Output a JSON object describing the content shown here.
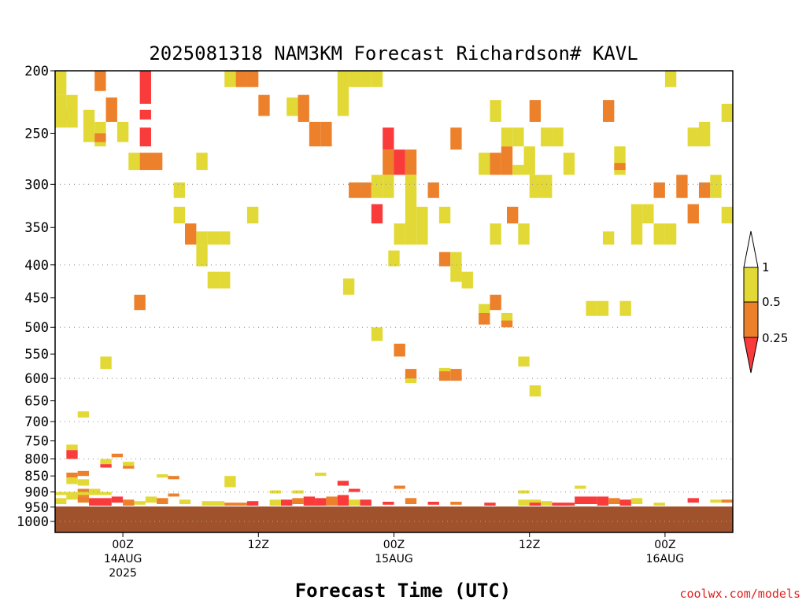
{
  "chart_data": {
    "type": "heatmap",
    "title": "2025081318 NAM3KM Forecast Richardson# KAVL",
    "xlabel": "Forecast Time (UTC)",
    "credit": "coolwx.com/models",
    "y_scale": "log-pressure",
    "y_ticks": [
      200,
      250,
      300,
      350,
      400,
      450,
      500,
      550,
      600,
      650,
      700,
      750,
      800,
      850,
      900,
      950,
      1000
    ],
    "y_gridlines": [
      300,
      400,
      500,
      600,
      700,
      800,
      900,
      1000
    ],
    "ylim": [
      200,
      1040
    ],
    "x_units": "hours since 2025081318",
    "xlim": [
      0,
      60
    ],
    "x_ticks": [
      {
        "x": 6,
        "lines": [
          "00Z",
          "14AUG",
          "2025"
        ]
      },
      {
        "x": 18,
        "lines": [
          "12Z"
        ]
      },
      {
        "x": 30,
        "lines": [
          "00Z",
          "15AUG"
        ]
      },
      {
        "x": 42,
        "lines": [
          "12Z"
        ]
      },
      {
        "x": 54,
        "lines": [
          "00Z",
          "16AUG"
        ]
      }
    ],
    "colorbar": {
      "labels": [
        "1",
        "0.5",
        "0.25"
      ],
      "colors": {
        "gt1": "#ffffff",
        "y": "#e2d936",
        "o": "#ed802a",
        "r": "#fa3b3b"
      }
    },
    "terrain": {
      "color": "#a0522d",
      "from_pressure": 948
    },
    "cells": [
      {
        "x": 0,
        "p": 200,
        "p2": 218,
        "c": "y"
      },
      {
        "x": 0,
        "p": 230,
        "p2": 240,
        "c": "o"
      },
      {
        "x": 0,
        "p": 218,
        "p2": 245,
        "c": "y"
      },
      {
        "x": 1,
        "p": 218,
        "p2": 245,
        "c": "y"
      },
      {
        "x": 2.5,
        "p": 230,
        "p2": 258,
        "c": "y"
      },
      {
        "x": 3.5,
        "p": 200,
        "p2": 215,
        "c": "o"
      },
      {
        "x": 3.5,
        "p": 240,
        "p2": 262,
        "c": "y"
      },
      {
        "x": 3.5,
        "p": 250,
        "p2": 258,
        "c": "o"
      },
      {
        "x": 4.5,
        "p": 220,
        "p2": 240,
        "c": "o"
      },
      {
        "x": 5.5,
        "p": 240,
        "p2": 258,
        "c": "y"
      },
      {
        "x": 7.5,
        "p": 200,
        "p2": 225,
        "c": "r"
      },
      {
        "x": 7.5,
        "p": 230,
        "p2": 238,
        "c": "r"
      },
      {
        "x": 7.5,
        "p": 245,
        "p2": 262,
        "c": "r"
      },
      {
        "x": 6.5,
        "p": 268,
        "p2": 285,
        "c": "y"
      },
      {
        "x": 7.5,
        "p": 268,
        "p2": 285,
        "c": "o"
      },
      {
        "x": 8.5,
        "p": 268,
        "p2": 285,
        "c": "o"
      },
      {
        "x": 12.5,
        "p": 268,
        "p2": 285,
        "c": "y"
      },
      {
        "x": 15,
        "p": 200,
        "p2": 212,
        "c": "y"
      },
      {
        "x": 16,
        "p": 200,
        "p2": 212,
        "c": "o"
      },
      {
        "x": 17,
        "p": 200,
        "p2": 212,
        "c": "o"
      },
      {
        "x": 18,
        "p": 218,
        "p2": 235,
        "c": "o"
      },
      {
        "x": 20.5,
        "p": 220,
        "p2": 235,
        "c": "y"
      },
      {
        "x": 21.5,
        "p": 218,
        "p2": 240,
        "c": "o"
      },
      {
        "x": 22.5,
        "p": 240,
        "p2": 262,
        "c": "o"
      },
      {
        "x": 23.5,
        "p": 240,
        "p2": 262,
        "c": "o"
      },
      {
        "x": 25,
        "p": 200,
        "p2": 235,
        "c": "y"
      },
      {
        "x": 26,
        "p": 200,
        "p2": 212,
        "c": "y"
      },
      {
        "x": 27,
        "p": 200,
        "p2": 212,
        "c": "y"
      },
      {
        "x": 28,
        "p": 200,
        "p2": 212,
        "c": "y"
      },
      {
        "x": 10.5,
        "p": 298,
        "p2": 315,
        "c": "y"
      },
      {
        "x": 10.5,
        "p": 325,
        "p2": 345,
        "c": "y"
      },
      {
        "x": 11.5,
        "p": 345,
        "p2": 372,
        "c": "o"
      },
      {
        "x": 12.5,
        "p": 355,
        "p2": 372,
        "c": "y"
      },
      {
        "x": 13.5,
        "p": 355,
        "p2": 372,
        "c": "y"
      },
      {
        "x": 14.5,
        "p": 355,
        "p2": 372,
        "c": "y"
      },
      {
        "x": 12.5,
        "p": 372,
        "p2": 402,
        "c": "y"
      },
      {
        "x": 13.5,
        "p": 410,
        "p2": 435,
        "c": "y"
      },
      {
        "x": 14.5,
        "p": 410,
        "p2": 435,
        "c": "y"
      },
      {
        "x": 17,
        "p": 325,
        "p2": 345,
        "c": "y"
      },
      {
        "x": 7,
        "p": 445,
        "p2": 470,
        "c": "o"
      },
      {
        "x": 26,
        "p": 298,
        "p2": 315,
        "c": "o"
      },
      {
        "x": 27,
        "p": 298,
        "p2": 315,
        "c": "o"
      },
      {
        "x": 28,
        "p": 290,
        "p2": 315,
        "c": "y"
      },
      {
        "x": 29,
        "p": 290,
        "p2": 315,
        "c": "y"
      },
      {
        "x": 28,
        "p": 322,
        "p2": 345,
        "c": "r"
      },
      {
        "x": 29,
        "p": 245,
        "p2": 265,
        "c": "r"
      },
      {
        "x": 29,
        "p": 265,
        "p2": 290,
        "c": "o"
      },
      {
        "x": 30,
        "p": 265,
        "p2": 290,
        "c": "r"
      },
      {
        "x": 31,
        "p": 265,
        "p2": 290,
        "c": "o"
      },
      {
        "x": 30,
        "p": 345,
        "p2": 372,
        "c": "y"
      },
      {
        "x": 31,
        "p": 290,
        "p2": 372,
        "c": "y"
      },
      {
        "x": 32,
        "p": 325,
        "p2": 372,
        "c": "y"
      },
      {
        "x": 33,
        "p": 298,
        "p2": 315,
        "c": "o"
      },
      {
        "x": 34,
        "p": 325,
        "p2": 345,
        "c": "y"
      },
      {
        "x": 35,
        "p": 245,
        "p2": 265,
        "c": "o"
      },
      {
        "x": 34,
        "p": 382,
        "p2": 402,
        "c": "o"
      },
      {
        "x": 35,
        "p": 382,
        "p2": 425,
        "c": "y"
      },
      {
        "x": 36,
        "p": 410,
        "p2": 435,
        "c": "y"
      },
      {
        "x": 25.5,
        "p": 420,
        "p2": 445,
        "c": "y"
      },
      {
        "x": 29.5,
        "p": 380,
        "p2": 402,
        "c": "y"
      },
      {
        "x": 37.5,
        "p": 268,
        "p2": 290,
        "c": "y"
      },
      {
        "x": 38.5,
        "p": 268,
        "p2": 290,
        "c": "o"
      },
      {
        "x": 39.5,
        "p": 262,
        "p2": 290,
        "c": "o"
      },
      {
        "x": 38.5,
        "p": 222,
        "p2": 240,
        "c": "y"
      },
      {
        "x": 39.5,
        "p": 245,
        "p2": 262,
        "c": "y"
      },
      {
        "x": 40.5,
        "p": 245,
        "p2": 262,
        "c": "y"
      },
      {
        "x": 40.5,
        "p": 280,
        "p2": 290,
        "c": "y"
      },
      {
        "x": 41.5,
        "p": 262,
        "p2": 290,
        "c": "y"
      },
      {
        "x": 38.5,
        "p": 345,
        "p2": 372,
        "c": "y"
      },
      {
        "x": 40,
        "p": 325,
        "p2": 345,
        "c": "o"
      },
      {
        "x": 41,
        "p": 345,
        "p2": 372,
        "c": "y"
      },
      {
        "x": 42,
        "p": 222,
        "p2": 240,
        "c": "o"
      },
      {
        "x": 42,
        "p": 290,
        "p2": 315,
        "c": "y"
      },
      {
        "x": 43,
        "p": 290,
        "p2": 315,
        "c": "y"
      },
      {
        "x": 43,
        "p": 245,
        "p2": 262,
        "c": "y"
      },
      {
        "x": 44,
        "p": 245,
        "p2": 262,
        "c": "y"
      },
      {
        "x": 45,
        "p": 268,
        "p2": 290,
        "c": "y"
      },
      {
        "x": 47,
        "p": 455,
        "p2": 480,
        "c": "y"
      },
      {
        "x": 48,
        "p": 455,
        "p2": 480,
        "c": "y"
      },
      {
        "x": 48.5,
        "p": 222,
        "p2": 240,
        "c": "o"
      },
      {
        "x": 49.5,
        "p": 262,
        "p2": 290,
        "c": "y"
      },
      {
        "x": 49.5,
        "p": 278,
        "p2": 285,
        "c": "o"
      },
      {
        "x": 48.5,
        "p": 355,
        "p2": 372,
        "c": "y"
      },
      {
        "x": 50,
        "p": 455,
        "p2": 480,
        "c": "y"
      },
      {
        "x": 51,
        "p": 322,
        "p2": 372,
        "c": "y"
      },
      {
        "x": 52,
        "p": 322,
        "p2": 345,
        "c": "y"
      },
      {
        "x": 53,
        "p": 345,
        "p2": 372,
        "c": "y"
      },
      {
        "x": 54,
        "p": 345,
        "p2": 372,
        "c": "y"
      },
      {
        "x": 53,
        "p": 298,
        "p2": 315,
        "c": "o"
      },
      {
        "x": 54,
        "p": 200,
        "p2": 212,
        "c": "y"
      },
      {
        "x": 55,
        "p": 290,
        "p2": 315,
        "c": "o"
      },
      {
        "x": 56,
        "p": 245,
        "p2": 262,
        "c": "y"
      },
      {
        "x": 57,
        "p": 240,
        "p2": 262,
        "c": "y"
      },
      {
        "x": 56,
        "p": 322,
        "p2": 345,
        "c": "o"
      },
      {
        "x": 57,
        "p": 298,
        "p2": 315,
        "c": "o"
      },
      {
        "x": 58,
        "p": 290,
        "p2": 315,
        "c": "y"
      },
      {
        "x": 59,
        "p": 325,
        "p2": 345,
        "c": "y"
      },
      {
        "x": 59,
        "p": 225,
        "p2": 240,
        "c": "y"
      },
      {
        "x": 60,
        "p": 325,
        "p2": 345,
        "c": "y"
      },
      {
        "x": 37.5,
        "p": 460,
        "p2": 475,
        "c": "y"
      },
      {
        "x": 37.5,
        "p": 475,
        "p2": 495,
        "c": "o"
      },
      {
        "x": 38.5,
        "p": 445,
        "p2": 470,
        "c": "o"
      },
      {
        "x": 39.5,
        "p": 475,
        "p2": 490,
        "c": "y"
      },
      {
        "x": 39.5,
        "p": 488,
        "p2": 500,
        "c": "o"
      },
      {
        "x": 28,
        "p": 500,
        "p2": 525,
        "c": "y"
      },
      {
        "x": 30,
        "p": 530,
        "p2": 555,
        "c": "o"
      },
      {
        "x": 31,
        "p": 580,
        "p2": 605,
        "c": "o"
      },
      {
        "x": 31,
        "p": 600,
        "p2": 610,
        "c": "y"
      },
      {
        "x": 34,
        "p": 580,
        "p2": 605,
        "c": "o"
      },
      {
        "x": 35,
        "p": 580,
        "p2": 605,
        "c": "o"
      },
      {
        "x": 34,
        "p": 578,
        "p2": 585,
        "c": "y"
      },
      {
        "x": 41,
        "p": 555,
        "p2": 575,
        "c": "y"
      },
      {
        "x": 42,
        "p": 615,
        "p2": 640,
        "c": "y"
      },
      {
        "x": 4,
        "p": 555,
        "p2": 580,
        "c": "y"
      },
      {
        "x": 2,
        "p": 675,
        "p2": 690,
        "c": "y"
      },
      {
        "x": 1,
        "p": 760,
        "p2": 775,
        "c": "y"
      },
      {
        "x": 1,
        "p": 775,
        "p2": 800,
        "c": "r"
      },
      {
        "x": 1,
        "p": 840,
        "p2": 855,
        "c": "o"
      },
      {
        "x": 1,
        "p": 855,
        "p2": 875,
        "c": "y"
      },
      {
        "x": 2,
        "p": 835,
        "p2": 850,
        "c": "o"
      },
      {
        "x": 2,
        "p": 860,
        "p2": 880,
        "c": "y"
      },
      {
        "x": 2,
        "p": 890,
        "p2": 915,
        "c": "o"
      },
      {
        "x": 3,
        "p": 890,
        "p2": 905,
        "c": "y"
      },
      {
        "x": 4,
        "p": 800,
        "p2": 815,
        "c": "y"
      },
      {
        "x": 4,
        "p": 815,
        "p2": 825,
        "c": "r"
      },
      {
        "x": 5,
        "p": 785,
        "p2": 795,
        "c": "o"
      },
      {
        "x": 6,
        "p": 808,
        "p2": 820,
        "c": "y"
      },
      {
        "x": 6,
        "p": 820,
        "p2": 828,
        "c": "o"
      },
      {
        "x": 15,
        "p": 850,
        "p2": 885,
        "c": "y"
      },
      {
        "x": 23,
        "p": 840,
        "p2": 850,
        "c": "y"
      },
      {
        "x": 25,
        "p": 865,
        "p2": 880,
        "c": "r"
      },
      {
        "x": 9,
        "p": 845,
        "p2": 855,
        "c": "y"
      },
      {
        "x": 10,
        "p": 850,
        "p2": 860,
        "c": "o"
      }
    ],
    "strips": [
      {
        "x0": 0,
        "x1": 1,
        "p": 920,
        "p2": 940,
        "c": "y"
      },
      {
        "x0": 1,
        "x1": 2,
        "p": 905,
        "p2": 925,
        "c": "y"
      },
      {
        "x0": 2,
        "x1": 3,
        "p": 915,
        "p2": 935,
        "c": "o"
      },
      {
        "x0": 3,
        "x1": 5,
        "p": 920,
        "p2": 945,
        "c": "r"
      },
      {
        "x0": 5,
        "x1": 6,
        "p": 915,
        "p2": 935,
        "c": "r"
      },
      {
        "x0": 6,
        "x1": 7,
        "p": 925,
        "p2": 945,
        "c": "o"
      },
      {
        "x0": 7,
        "x1": 8,
        "p": 930,
        "p2": 942,
        "c": "y"
      },
      {
        "x0": 8,
        "x1": 9,
        "p": 915,
        "p2": 935,
        "c": "y"
      },
      {
        "x0": 9,
        "x1": 10,
        "p": 920,
        "p2": 940,
        "c": "o"
      },
      {
        "x0": 11,
        "x1": 12,
        "p": 925,
        "p2": 940,
        "c": "y"
      },
      {
        "x0": 13,
        "x1": 15,
        "p": 930,
        "p2": 945,
        "c": "y"
      },
      {
        "x0": 15,
        "x1": 17,
        "p": 935,
        "p2": 945,
        "c": "o"
      },
      {
        "x0": 17,
        "x1": 18,
        "p": 930,
        "p2": 945,
        "c": "r"
      },
      {
        "x0": 19,
        "x1": 20,
        "p": 925,
        "p2": 945,
        "c": "y"
      },
      {
        "x0": 20,
        "x1": 21,
        "p": 925,
        "p2": 945,
        "c": "r"
      },
      {
        "x0": 21,
        "x1": 22,
        "p": 920,
        "p2": 940,
        "c": "o"
      },
      {
        "x0": 22,
        "x1": 23,
        "p": 915,
        "p2": 945,
        "c": "r"
      },
      {
        "x0": 23,
        "x1": 24,
        "p": 920,
        "p2": 945,
        "c": "r"
      },
      {
        "x0": 24,
        "x1": 25,
        "p": 915,
        "p2": 945,
        "c": "o"
      },
      {
        "x0": 25,
        "x1": 26,
        "p": 910,
        "p2": 945,
        "c": "r"
      },
      {
        "x0": 26,
        "x1": 27,
        "p": 925,
        "p2": 945,
        "c": "y"
      },
      {
        "x0": 27,
        "x1": 28,
        "p": 925,
        "p2": 945,
        "c": "r"
      },
      {
        "x0": 29,
        "x1": 30,
        "p": 932,
        "p2": 942,
        "c": "r"
      },
      {
        "x0": 31,
        "x1": 32,
        "p": 920,
        "p2": 940,
        "c": "o"
      },
      {
        "x0": 33,
        "x1": 34,
        "p": 932,
        "p2": 942,
        "c": "r"
      },
      {
        "x0": 35,
        "x1": 36,
        "p": 932,
        "p2": 942,
        "c": "o"
      },
      {
        "x0": 38,
        "x1": 39,
        "p": 935,
        "p2": 945,
        "c": "r"
      },
      {
        "x0": 41,
        "x1": 43,
        "p": 925,
        "p2": 945,
        "c": "y"
      },
      {
        "x0": 42,
        "x1": 43,
        "p": 935,
        "p2": 945,
        "c": "r"
      },
      {
        "x0": 43,
        "x1": 44,
        "p": 930,
        "p2": 945,
        "c": "y"
      },
      {
        "x0": 44,
        "x1": 46,
        "p": 935,
        "p2": 945,
        "c": "r"
      },
      {
        "x0": 46,
        "x1": 48,
        "p": 915,
        "p2": 940,
        "c": "r"
      },
      {
        "x0": 48,
        "x1": 49,
        "p": 915,
        "p2": 945,
        "c": "r"
      },
      {
        "x0": 49,
        "x1": 50,
        "p": 920,
        "p2": 940,
        "c": "o"
      },
      {
        "x0": 50,
        "x1": 51,
        "p": 925,
        "p2": 945,
        "c": "r"
      },
      {
        "x0": 51,
        "x1": 52,
        "p": 920,
        "p2": 940,
        "c": "y"
      },
      {
        "x0": 53,
        "x1": 54,
        "p": 935,
        "p2": 945,
        "c": "y"
      },
      {
        "x0": 56,
        "x1": 57,
        "p": 920,
        "p2": 935,
        "c": "r"
      },
      {
        "x0": 58,
        "x1": 59,
        "p": 925,
        "p2": 935,
        "c": "y"
      },
      {
        "x0": 59,
        "x1": 60,
        "p": 925,
        "p2": 935,
        "c": "o"
      },
      {
        "x0": 60,
        "x1": 61,
        "p": 925,
        "p2": 935,
        "c": "y"
      },
      {
        "x0": 0,
        "x1": 5,
        "p": 900,
        "p2": 910,
        "c": "y"
      },
      {
        "x0": 10,
        "x1": 11,
        "p": 905,
        "p2": 915,
        "c": "o"
      },
      {
        "x0": 19,
        "x1": 20,
        "p": 895,
        "p2": 905,
        "c": "y"
      },
      {
        "x0": 21,
        "x1": 22,
        "p": 895,
        "p2": 905,
        "c": "y"
      },
      {
        "x0": 26,
        "x1": 27,
        "p": 890,
        "p2": 900,
        "c": "r"
      },
      {
        "x0": 30,
        "x1": 31,
        "p": 880,
        "p2": 890,
        "c": "o"
      },
      {
        "x0": 41,
        "x1": 42,
        "p": 895,
        "p2": 905,
        "c": "y"
      },
      {
        "x0": 46,
        "x1": 47,
        "p": 880,
        "p2": 890,
        "c": "y"
      },
      {
        "x0": 60,
        "x1": 61,
        "p": 895,
        "p2": 905,
        "c": "o"
      }
    ]
  }
}
